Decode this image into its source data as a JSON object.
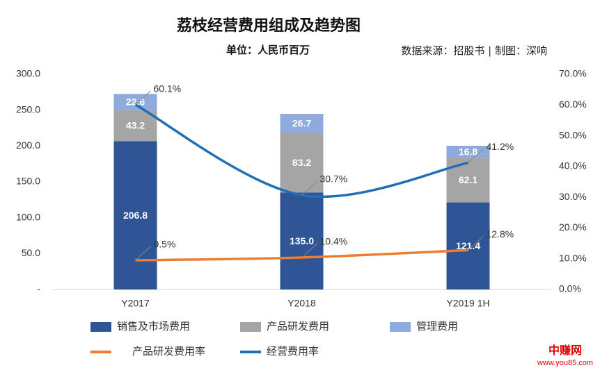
{
  "chart_data": {
    "type": "bar",
    "title": "荔枝经营费用组成及趋势图",
    "subtitle": "单位：人民币百万",
    "source": "数据来源：招股书 | 制图：深响",
    "watermark": [
      "中赚网",
      "www.you85.com"
    ],
    "categories": [
      "Y2017",
      "Y2018",
      "Y2019 1H"
    ],
    "series": [
      {
        "name": "销售及市场费用",
        "color": "#2f5597",
        "values": [
          206.8,
          135.0,
          121.4
        ],
        "value_labels": [
          "206.8",
          "135.0",
          "121.4"
        ]
      },
      {
        "name": "产品研发费用",
        "color": "#a5a5a5",
        "values": [
          43.2,
          83.2,
          62.1
        ]
      },
      {
        "name": "管理费用",
        "color": "#8faadc",
        "values": [
          22.6,
          26.7,
          16.8
        ]
      },
      {
        "name": "产品研发费用率",
        "type": "line",
        "axis": "y2",
        "color": "#ed7d31",
        "values": [
          9.5,
          10.4,
          12.8
        ],
        "value_labels": [
          "9.5%",
          "10.4%",
          "12.8%"
        ]
      },
      {
        "name": "经营费用率",
        "type": "line",
        "axis": "y2",
        "color": "#1f6fb5",
        "values": [
          60.1,
          30.7,
          41.2
        ],
        "value_labels": [
          "60.1%",
          "30.7%",
          "41.2%"
        ]
      }
    ],
    "ylim": [
      0,
      300
    ],
    "yticks": [
      {
        "value": 0,
        "label": "-"
      },
      {
        "value": 50,
        "label": "50.0"
      },
      {
        "value": 100,
        "label": "100.0"
      },
      {
        "value": 150,
        "label": "150.0"
      },
      {
        "value": 200,
        "label": "200.0"
      },
      {
        "value": 250,
        "label": "250.0"
      },
      {
        "value": 300,
        "label": "300.0"
      }
    ],
    "y2lim": [
      0,
      70
    ],
    "y2ticks": [
      {
        "value": 0,
        "label": "0.0%"
      },
      {
        "value": 10,
        "label": "10.0%"
      },
      {
        "value": 20,
        "label": "20.0%"
      },
      {
        "value": 30,
        "label": "30.0%"
      },
      {
        "value": 40,
        "label": "40.0%"
      },
      {
        "value": 50,
        "label": "50.0%"
      },
      {
        "value": 60,
        "label": "60.0%"
      },
      {
        "value": 70,
        "label": "70.0%"
      }
    ]
  }
}
